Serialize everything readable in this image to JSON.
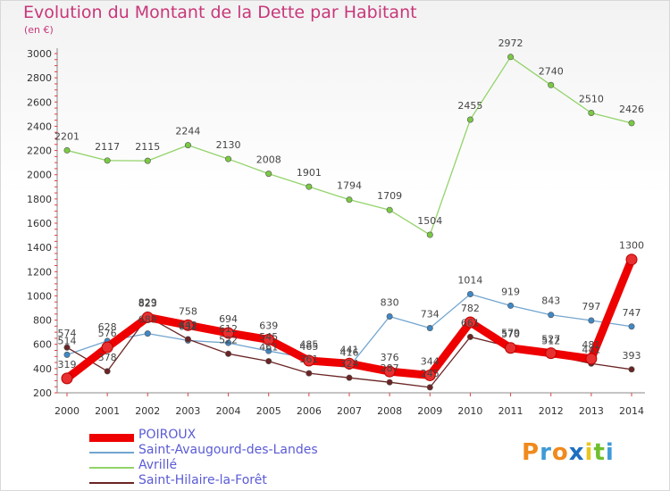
{
  "header": {
    "title": "Evolution du Montant de la Dette par Habitant",
    "unit": "(en €)"
  },
  "logo": {
    "letters": [
      "P",
      "r",
      "o",
      "x",
      "i",
      "t",
      "i"
    ],
    "colors": [
      "#f08a1e",
      "#3f9ad6",
      "#f08a1e",
      "#1e6fc0",
      "#e8c81e",
      "#6fbf2e",
      "#3f9ad6"
    ]
  },
  "chart_data": {
    "type": "line",
    "title": "Evolution du Montant de la Dette par Habitant",
    "ylabel": "(en €)",
    "xlabel": "",
    "x": [
      "2000",
      "2001",
      "2002",
      "2003",
      "2004",
      "2005",
      "2006",
      "2007",
      "2008",
      "2009",
      "2010",
      "2011",
      "2012",
      "2013",
      "2014"
    ],
    "ylim": [
      200,
      3000
    ],
    "yticks": [
      "200",
      "400",
      "600",
      "800",
      "1000",
      "1200",
      "1400",
      "1600",
      "1800",
      "2000",
      "2200",
      "2400",
      "2600",
      "2800",
      "3000"
    ],
    "grid": false,
    "legend_position": "bottom-left",
    "series": [
      {
        "name": "Avrillé",
        "color": "#93d36a",
        "marker": "#7ac943",
        "values": [
          2201,
          2117,
          2115,
          2244,
          2130,
          2008,
          1901,
          1794,
          1709,
          1504,
          2455,
          2972,
          2740,
          2510,
          2426
        ],
        "labels": [
          "2201",
          "2117",
          "2115",
          "2244",
          "2130",
          "2008",
          "1901",
          "1794",
          "1709",
          "1504",
          "2455",
          "2972",
          "2740",
          "2510",
          "2426"
        ]
      },
      {
        "name": "Saint-Avaugourd-des-Landes",
        "color": "#72a5cf",
        "marker": "#3f88c5",
        "values": [
          514,
          628,
          689,
          632,
          612,
          545,
          485,
          416,
          830,
          734,
          1014,
          919,
          843,
          797,
          747
        ],
        "labels": [
          "514",
          "628",
          "689",
          "632",
          "612",
          "545",
          "485",
          "416",
          "830",
          "734",
          "1014",
          "919",
          "843",
          "797",
          "747"
        ]
      },
      {
        "name": "Saint-Hilaire-la-Forêt",
        "color": "#6b2424",
        "marker": "#6b2424",
        "values": [
          574,
          378,
          829,
          642,
          522,
          461,
          361,
          324,
          287,
          245,
          661,
          579,
          512,
          441,
          393
        ],
        "labels": [
          "574",
          "378",
          "829",
          "642",
          "522",
          "461",
          "361",
          "324",
          "287",
          "245",
          "661",
          "579",
          "512",
          "441",
          "393"
        ]
      },
      {
        "name": "POIROUX",
        "color": "#ee0000",
        "marker": "#e83030",
        "values": [
          319,
          576,
          823,
          758,
          694,
          639,
          465,
          441,
          376,
          344,
          782,
          570,
          527,
          481,
          1300
        ],
        "labels": [
          "319",
          "576",
          "823",
          "758",
          "694",
          "639",
          "465",
          "441",
          "376",
          "344",
          "782",
          "570",
          "527",
          "481",
          "1300"
        ]
      }
    ]
  },
  "legend": {
    "items": [
      {
        "label": "POIROUX",
        "color": "#ee0000"
      },
      {
        "label": "Saint-Avaugourd-des-Landes",
        "color": "#72a5cf"
      },
      {
        "label": "Avrillé",
        "color": "#93d36a"
      },
      {
        "label": "Saint-Hilaire-la-Forêt",
        "color": "#6b2424"
      }
    ]
  }
}
